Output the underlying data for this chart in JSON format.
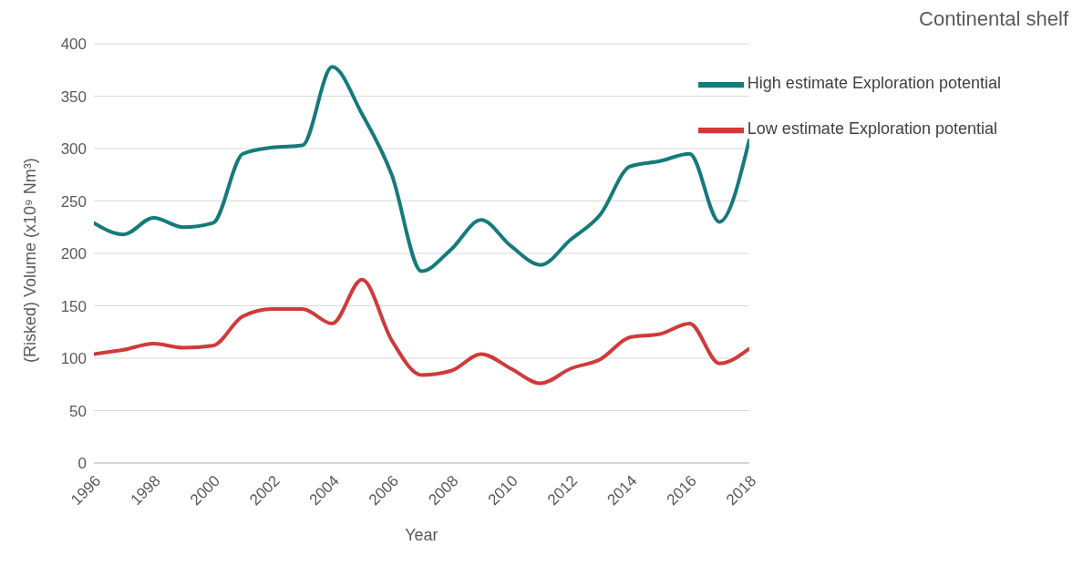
{
  "chart_data": {
    "type": "line",
    "title": "Continental shelf",
    "xlabel": "Year",
    "ylabel": "(Risked) Volume (x10⁹ Nm³)",
    "x": [
      1996,
      1997,
      1998,
      1999,
      2000,
      2001,
      2002,
      2003,
      2004,
      2005,
      2006,
      2007,
      2008,
      2009,
      2010,
      2011,
      2012,
      2013,
      2014,
      2015,
      2016,
      2017,
      2018
    ],
    "series": [
      {
        "name": "Low estimate Exploration potential",
        "color": "#d03a3a",
        "values": [
          104,
          108,
          114,
          110,
          112,
          140,
          147,
          147,
          133,
          175,
          117,
          84,
          88,
          104,
          90,
          76,
          90,
          99,
          120,
          123,
          133,
          95,
          109
        ]
      },
      {
        "name": "High estimate Exploration potential",
        "color": "#157a7a",
        "values": [
          229,
          218,
          234,
          225,
          229,
          295,
          301,
          303,
          378,
          333,
          275,
          183,
          204,
          232,
          207,
          189,
          213,
          237,
          283,
          288,
          295,
          230,
          308
        ]
      }
    ],
    "xlim": [
      1996,
      2018
    ],
    "xticks": [
      1996,
      1998,
      2000,
      2002,
      2004,
      2006,
      2008,
      2010,
      2012,
      2014,
      2016,
      2018
    ],
    "ylim": [
      0,
      400
    ],
    "yticks": [
      0,
      50,
      100,
      150,
      200,
      250,
      300,
      350,
      400
    ],
    "grid": "y",
    "legend": "top right",
    "marker": "none",
    "line_style": "solid"
  }
}
